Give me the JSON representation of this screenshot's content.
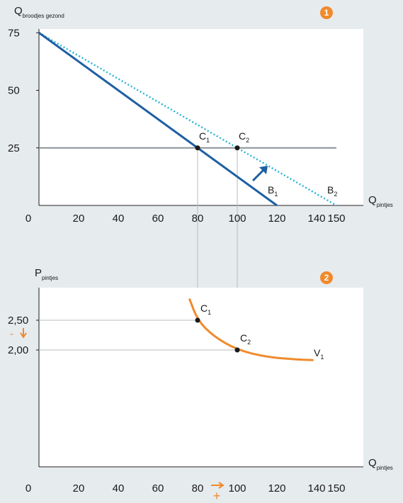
{
  "colors": {
    "background": "#e6ebee",
    "plot_area": "#ffffff",
    "budget_line": "#1e5fa3",
    "budget_line_new": "#2ab5d6",
    "horizontal_line": "#8a9396",
    "guide_line": "#b7bec1",
    "demand_curve": "#f08a2c",
    "badge": "#f08a2c",
    "shift_arrow": "#1e5fa3"
  },
  "chart_data": [
    {
      "type": "line",
      "badge": "1",
      "ylabel": {
        "main": "Q",
        "sub": "broodjes gezond"
      },
      "xlabel": {
        "main": "Q",
        "sub": "pintjes"
      },
      "xlim": [
        0,
        160
      ],
      "ylim": [
        0,
        78
      ],
      "x_ticks": [
        "0",
        "20",
        "40",
        "60",
        "80",
        "100",
        "120",
        "140",
        "150"
      ],
      "x_tick_values": [
        0,
        20,
        40,
        60,
        80,
        100,
        120,
        140,
        150
      ],
      "y_ticks": [
        "25",
        "50",
        "75"
      ],
      "y_tick_values": [
        25,
        50,
        75
      ],
      "grid": false,
      "series": [
        {
          "name": "B1",
          "label_main": "B",
          "label_sub": "1",
          "style": "solid",
          "x": [
            0,
            120
          ],
          "y": [
            75,
            0
          ]
        },
        {
          "name": "B2",
          "label_main": "B",
          "label_sub": "2",
          "style": "dotted",
          "x": [
            0,
            150
          ],
          "y": [
            75,
            0
          ]
        },
        {
          "style": "solid-gray",
          "x": [
            0,
            150
          ],
          "y": [
            25,
            25
          ]
        }
      ],
      "points": [
        {
          "main": "C",
          "sub": "1",
          "x": 80,
          "y": 25
        },
        {
          "main": "C",
          "sub": "2",
          "x": 100,
          "y": 25
        }
      ],
      "annotations": [
        "shift arrow from B1 to B2"
      ]
    },
    {
      "type": "line",
      "badge": "2",
      "ylabel": {
        "main": "P",
        "sub": "pintjes"
      },
      "xlabel": {
        "main": "Q",
        "sub": "pintjes"
      },
      "xlim": [
        0,
        160
      ],
      "ylim": [
        0,
        3
      ],
      "x_ticks": [
        "0",
        "20",
        "40",
        "60",
        "80",
        "100",
        "120",
        "140",
        "150"
      ],
      "x_tick_values": [
        0,
        20,
        40,
        60,
        80,
        100,
        120,
        140,
        150
      ],
      "y_ticks": [
        "2,00",
        "2,50"
      ],
      "y_tick_values": [
        2.0,
        2.5
      ],
      "grid": false,
      "series": [
        {
          "name": "V1",
          "label_main": "V",
          "label_sub": "1",
          "style": "curve",
          "x": [
            76,
            80,
            88,
            100,
            115,
            130,
            138
          ],
          "y": [
            2.85,
            2.5,
            2.23,
            2.0,
            1.88,
            1.84,
            1.83
          ]
        }
      ],
      "points": [
        {
          "main": "C",
          "sub": "1",
          "x": 80,
          "y": 2.5
        },
        {
          "main": "C",
          "sub": "2",
          "x": 100,
          "y": 2.0
        }
      ],
      "annotations": [
        {
          "text": "-",
          "arrow": "down",
          "meaning": "price decreases"
        },
        {
          "text": "+",
          "arrow": "right",
          "meaning": "quantity increases"
        }
      ]
    }
  ]
}
